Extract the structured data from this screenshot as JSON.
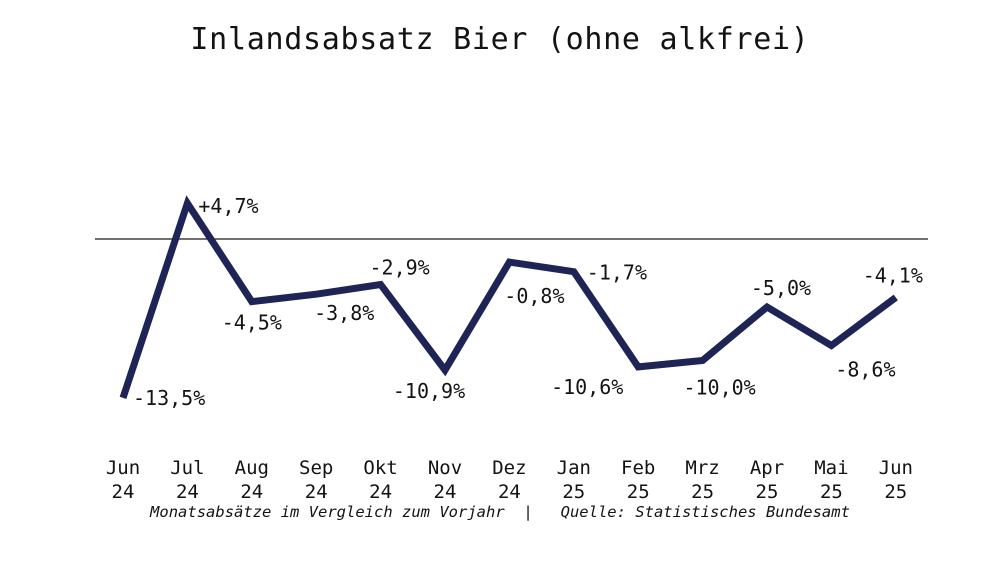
{
  "chart_data": {
    "type": "line",
    "title": "Inlandsabsatz Bier (ohne alkfrei)",
    "categories": [
      "Jun 24",
      "Jul 24",
      "Aug 24",
      "Sep 24",
      "Okt 24",
      "Nov 24",
      "Dez 24",
      "Jan 25",
      "Feb 25",
      "Mrz 25",
      "Apr 25",
      "Mai 25",
      "Jun 25"
    ],
    "values": [
      -13.5,
      4.7,
      -4.5,
      -3.8,
      -2.9,
      -10.9,
      -0.8,
      -1.7,
      -10.6,
      -10.0,
      -5.0,
      -8.6,
      -4.1
    ],
    "point_labels": [
      "-13,5%",
      "+4,7%",
      "-4,5%",
      "-3,8%",
      "-2,9%",
      "-10,9%",
      "-0,8%",
      "-1,7%",
      "-10,6%",
      "-10,0%",
      "-5,0%",
      "-8,6%",
      "-4,1%"
    ],
    "footer": "Monatsabsätze im Vergleich zum Vorjahr  |   Quelle: Statistisches Bundesamt",
    "xlabel": "",
    "ylabel": "",
    "unit": "%",
    "ylim": [
      -15,
      6
    ],
    "grid": false,
    "legend": "none",
    "zero_line": true,
    "line_color": "#1f2456",
    "axis_color": "#1a1a1a",
    "text_color": "#131313"
  }
}
